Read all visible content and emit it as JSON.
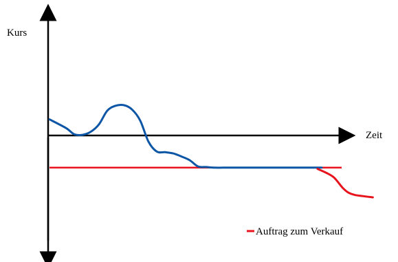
{
  "chart_data": {
    "type": "line",
    "ylabel": "Kurs",
    "xlabel": "Zeit",
    "axes": {
      "ticks": "none",
      "grid": false
    },
    "legend": {
      "position": "bottom-right",
      "entries": [
        {
          "label": "Auftrag zum Verkauf",
          "color": "#e8141d"
        }
      ]
    },
    "series": [
      {
        "name": "",
        "color": "#0d56a6",
        "x": [
          0,
          20,
          30,
          40,
          50,
          60,
          70,
          80,
          90,
          100,
          110,
          120,
          130,
          140,
          150,
          160,
          170,
          180,
          190,
          200,
          210,
          220,
          230,
          240,
          250,
          260,
          270,
          280,
          290,
          300,
          310,
          320,
          330
        ],
        "y": [
          1.3,
          0.6,
          0.1,
          0.05,
          0.3,
          0.9,
          2.0,
          2.4,
          2.45,
          2.1,
          1.2,
          -0.5,
          -1.3,
          -1.35,
          -1.45,
          -1.7,
          -2.0,
          -2.5,
          -2.55,
          -2.6,
          -2.6,
          -2.6,
          -2.6,
          -2.6,
          -2.6,
          -2.6,
          -2.6,
          -2.6,
          -2.6,
          -2.6,
          -2.6,
          -2.6,
          -2.6
        ]
      },
      {
        "name": "",
        "color": "#e8141d",
        "x": [
          325,
          335,
          345,
          355,
          362,
          370,
          380,
          392
        ],
        "y": [
          -2.7,
          -3.0,
          -3.4,
          -4.2,
          -4.6,
          -4.8,
          -4.9,
          -5.0
        ]
      }
    ],
    "threshold": {
      "label": "Auftrag zum Verkauf",
      "y": -2.6,
      "color": "#e8141d"
    }
  }
}
